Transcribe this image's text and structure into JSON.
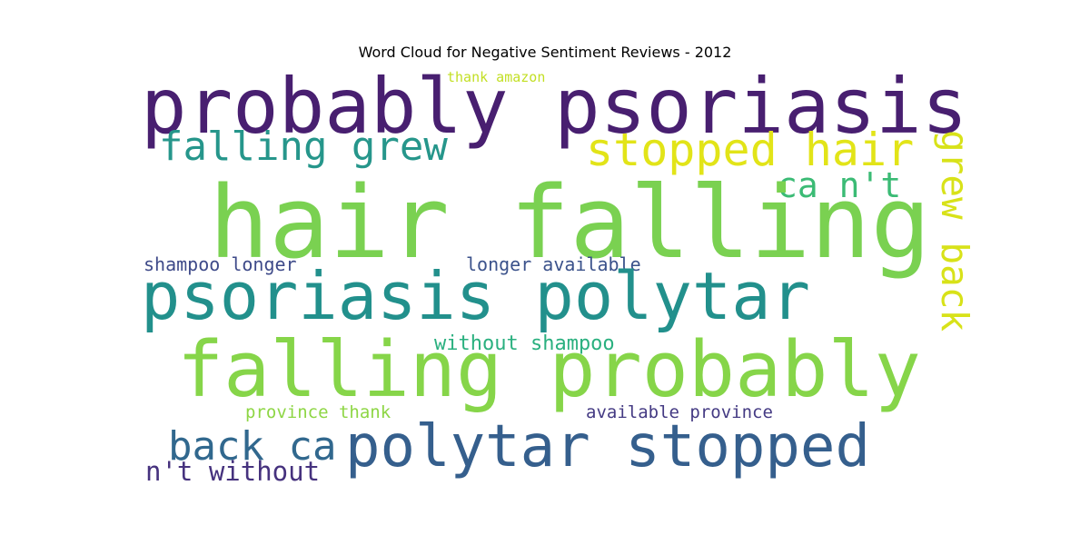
{
  "title": "Word Cloud for Negative Sentiment Reviews - 2012",
  "words": {
    "hair_falling": {
      "text": "hair falling",
      "color": "#7ad151"
    },
    "probably_psoriasis": {
      "text": "probably psoriasis",
      "color": "#481f70"
    },
    "psoriasis_polytar": {
      "text": "psoriasis polytar",
      "color": "#22908c"
    },
    "falling_probably": {
      "text": "falling probably",
      "color": "#86d549"
    },
    "polytar_stopped": {
      "text": "polytar stopped",
      "color": "#355f8d"
    },
    "stopped_hair": {
      "text": "stopped hair",
      "color": "#e2e418"
    },
    "falling_grew": {
      "text": "falling grew",
      "color": "#26968b"
    },
    "back_ca": {
      "text": "back ca",
      "color": "#31688e"
    },
    "grew_back": {
      "text": "grew back",
      "color": "#d8e219"
    },
    "ca_nt": {
      "text": "ca n't",
      "color": "#3bbb75"
    },
    "nt_without": {
      "text": "n't without",
      "color": "#46327e"
    },
    "without_shampoo": {
      "text": "without shampoo",
      "color": "#2ab07f"
    },
    "shampoo_longer": {
      "text": "shampoo longer",
      "color": "#3e4a89"
    },
    "longer_available": {
      "text": "longer available",
      "color": "#3b528b"
    },
    "province_thank": {
      "text": "province thank",
      "color": "#8ed645"
    },
    "available_province": {
      "text": "available province",
      "color": "#443a83"
    },
    "thank_amazon": {
      "text": "thank amazon",
      "color": "#c2df23"
    }
  }
}
